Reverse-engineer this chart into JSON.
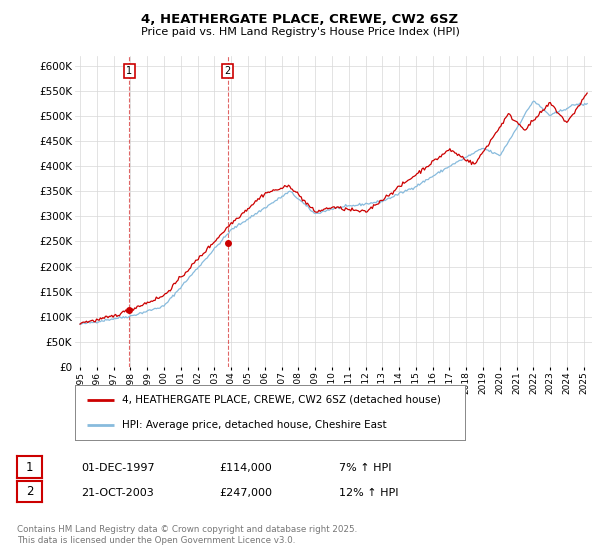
{
  "title_line1": "4, HEATHERGATE PLACE, CREWE, CW2 6SZ",
  "title_line2": "Price paid vs. HM Land Registry's House Price Index (HPI)",
  "ylim": [
    0,
    620000
  ],
  "yticks": [
    0,
    50000,
    100000,
    150000,
    200000,
    250000,
    300000,
    350000,
    400000,
    450000,
    500000,
    550000,
    600000
  ],
  "legend_line1": "4, HEATHERGATE PLACE, CREWE, CW2 6SZ (detached house)",
  "legend_line2": "HPI: Average price, detached house, Cheshire East",
  "sale1_label": "1",
  "sale1_date": "01-DEC-1997",
  "sale1_price": "£114,000",
  "sale1_hpi": "7% ↑ HPI",
  "sale2_label": "2",
  "sale2_date": "21-OCT-2003",
  "sale2_price": "£247,000",
  "sale2_hpi": "12% ↑ HPI",
  "footer": "Contains HM Land Registry data © Crown copyright and database right 2025.\nThis data is licensed under the Open Government Licence v3.0.",
  "line_color_red": "#cc0000",
  "line_color_blue": "#88bbdd",
  "marker_color": "#cc0000",
  "sale1_x_year": 1997.92,
  "sale1_y": 114000,
  "sale2_x_year": 2003.8,
  "sale2_y": 247000,
  "xlim_left": 1994.7,
  "xlim_right": 2025.5,
  "background_color": "#ffffff",
  "grid_color": "#d8d8d8"
}
